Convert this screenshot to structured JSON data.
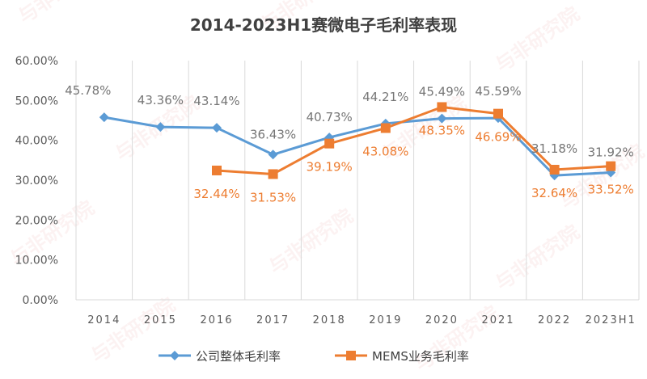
{
  "watermark": "与非研究院",
  "chart_data": {
    "type": "line",
    "title": "2014-2023H1赛微电子毛利率表现",
    "categories": [
      "2014",
      "2015",
      "2016",
      "2017",
      "2018",
      "2019",
      "2020",
      "2021",
      "2022",
      "2023H1"
    ],
    "ylim": [
      0,
      60
    ],
    "yticks": [
      0,
      10,
      20,
      30,
      40,
      50,
      60
    ],
    "ytick_labels": [
      "0.00%",
      "10.00%",
      "20.00%",
      "30.00%",
      "40.00%",
      "50.00%",
      "60.00%"
    ],
    "grid": "vertical",
    "legend_position": "bottom",
    "series": [
      {
        "name": "公司整体毛利率",
        "color": "#5b9bd5",
        "marker": "diamond",
        "values": [
          45.78,
          43.36,
          43.14,
          36.43,
          40.73,
          44.21,
          45.49,
          45.59,
          31.18,
          31.92
        ],
        "labels": [
          "45.78%",
          "43.36%",
          "43.14%",
          "36.43%",
          "40.73%",
          "44.21%",
          "45.49%",
          "45.59%",
          "31.18%",
          "31.92%"
        ],
        "label_color": "#767676"
      },
      {
        "name": "MEMS业务毛利率",
        "color": "#ed7d31",
        "marker": "square",
        "values": [
          null,
          null,
          32.44,
          31.53,
          39.19,
          43.08,
          48.35,
          46.69,
          32.64,
          33.52
        ],
        "labels": [
          null,
          null,
          "32.44%",
          "31.53%",
          "39.19%",
          "43.08%",
          "48.35%",
          "46.69%",
          "32.64%",
          "33.52%"
        ],
        "label_color": "#ed7d31"
      }
    ]
  }
}
